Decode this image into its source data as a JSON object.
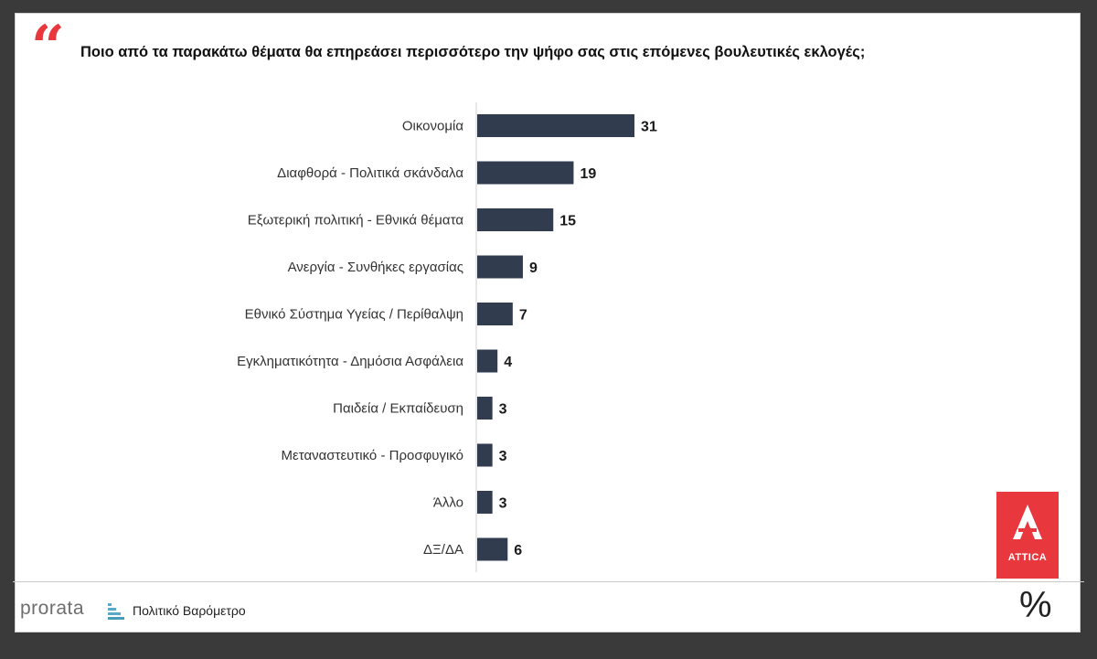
{
  "question": "Ποιο από τα παρακάτω θέματα θα επηρεάσει περισσότερο την ψήφο σας στις επόμενες βουλευτικές εκλογές;",
  "quote_mark": "“",
  "chart_data": {
    "type": "bar",
    "orientation": "horizontal",
    "title": "Ποιο από τα παρακάτω θέματα θα επηρεάσει περισσότερο την ψήφο σας στις επόμενες βουλευτικές εκλογές;",
    "categories": [
      "Οικονομία",
      "Διαφθορά - Πολιτικά σκάνδαλα",
      "Εξωτερική πολιτική - Εθνικά θέματα",
      "Ανεργία - Συνθήκες εργασίας",
      "Εθνικό Σύστημα Υγείας / Περίθαλψη",
      "Εγκληματικότητα - Δημόσια Ασφάλεια",
      "Παιδεία / Εκπαίδευση",
      "Μεταναστευτικό - Προσφυγικό",
      "Άλλο",
      "ΔΞ/ΔΑ"
    ],
    "values": [
      31,
      19,
      15,
      9,
      7,
      4,
      3,
      3,
      3,
      6
    ],
    "bar_color": "#323c4f",
    "grid": false,
    "legend": "none"
  },
  "footer": {
    "brand": "prorata",
    "subtitle": "Πολιτικό Βαρόμετρο",
    "percent_symbol": "%"
  },
  "logo": {
    "name": "ATTICA",
    "color": "#e8383d",
    "icon": "attica-a-logo-icon"
  }
}
